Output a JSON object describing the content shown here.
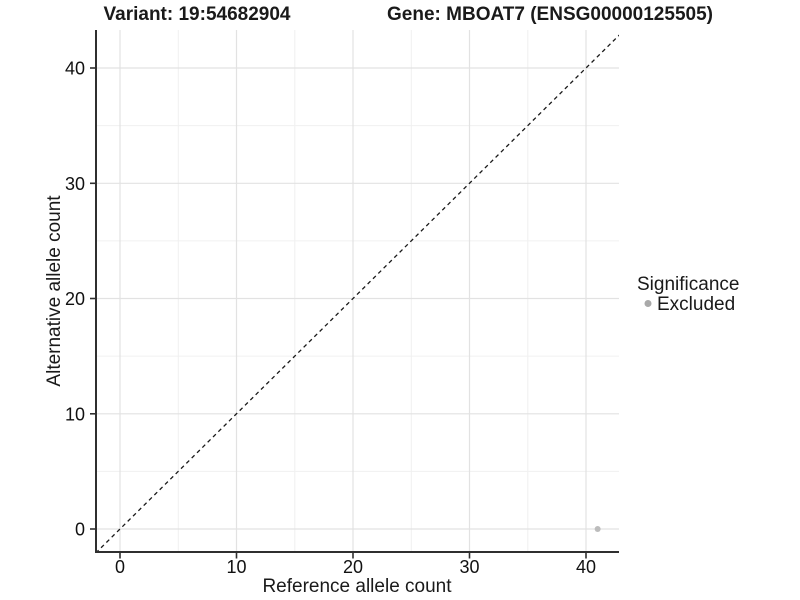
{
  "chart_data": {
    "type": "scatter",
    "titles": {
      "left": "Variant: 19:54682904",
      "right": "Gene: MBOAT7 (ENSG00000125505)"
    },
    "xlabel": "Reference allele count",
    "ylabel": "Alternative allele count",
    "x_ticks": [
      "0",
      "10",
      "20",
      "30",
      "40"
    ],
    "y_ticks": [
      "0",
      "10",
      "20",
      "30",
      "40"
    ],
    "xlim": [
      -2.1,
      42.8
    ],
    "ylim": [
      -2.1,
      43.3
    ],
    "grid": "major and minor gridlines, white panel",
    "points": [
      {
        "x": 41,
        "y": 0,
        "series": "Excluded"
      }
    ],
    "point_color": "#bcbcbc",
    "point_radius": 3,
    "identity_line": {
      "slope": 1,
      "intercept": 0,
      "style": "dashed",
      "color": "#1a1a1a"
    },
    "legend": {
      "title": "Significance",
      "position": "right",
      "entries": [
        {
          "label": "Excluded",
          "color": "#a9a9a9"
        }
      ]
    }
  }
}
